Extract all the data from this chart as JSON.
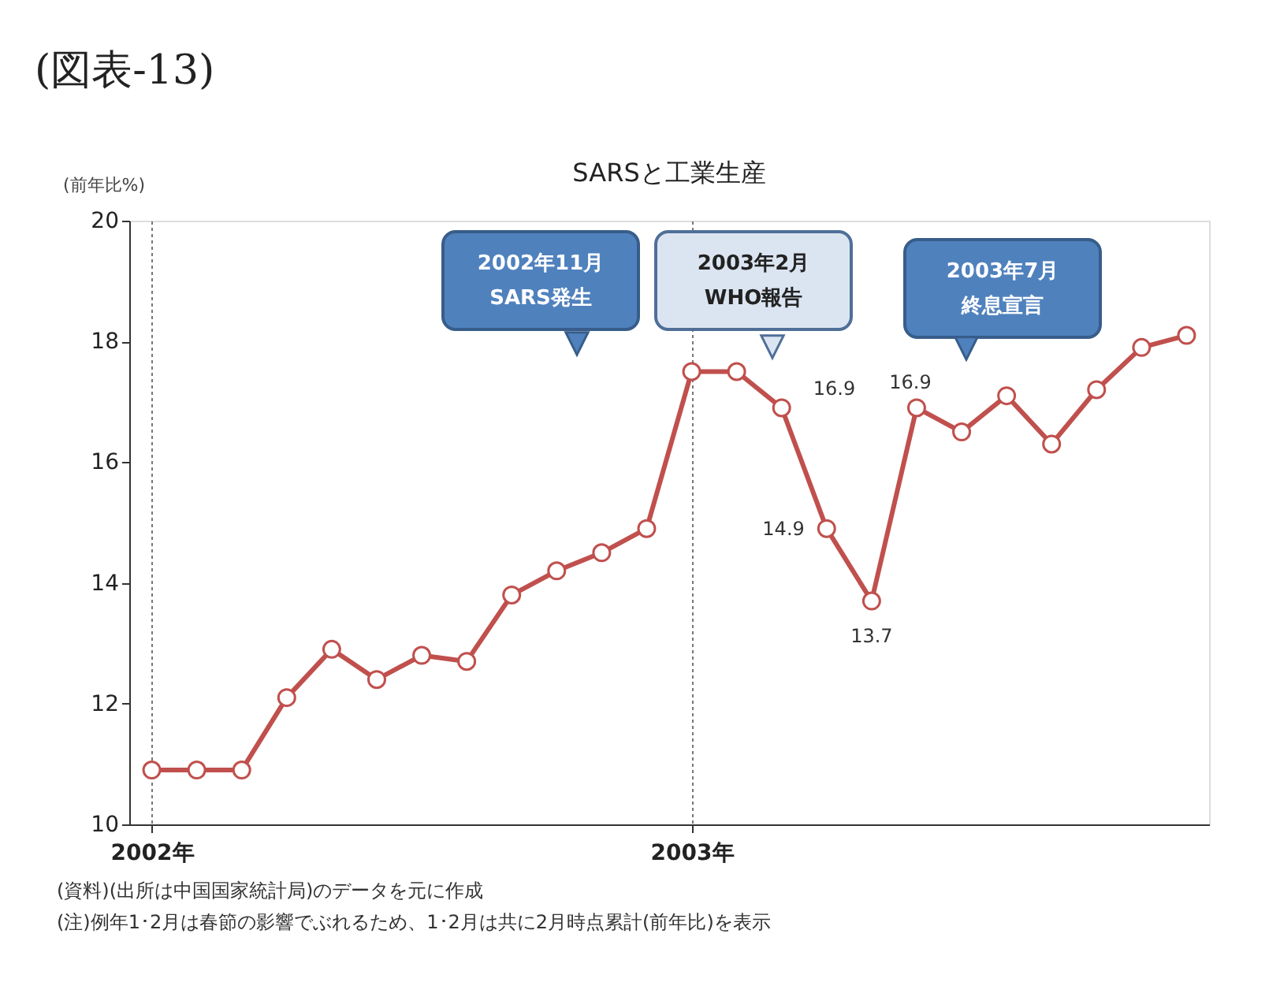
{
  "chart_data": {
    "type": "line",
    "title": "SARSと工業生産",
    "ylabel": "(前年比%)",
    "categories": [
      "2002年",
      null,
      null,
      null,
      null,
      null,
      null,
      null,
      null,
      null,
      null,
      null,
      "2003年",
      null,
      null,
      null,
      null,
      null,
      null,
      null,
      null,
      null,
      null,
      null
    ],
    "series": [
      {
        "color": "#c0504d",
        "values": [
          10.9,
          10.9,
          10.9,
          12.1,
          12.9,
          12.4,
          12.8,
          12.7,
          13.8,
          14.2,
          14.5,
          14.9,
          17.5,
          17.5,
          16.9,
          14.9,
          13.7,
          16.9,
          16.5,
          17.1,
          16.3,
          17.2,
          17.9,
          18.1
        ],
        "value_labels": [
          null,
          null,
          null,
          null,
          null,
          null,
          null,
          null,
          null,
          null,
          null,
          null,
          null,
          null,
          "16.9",
          "14.9",
          "13.7",
          "16.9",
          null,
          null,
          null,
          null,
          null,
          null
        ]
      }
    ],
    "ylim": [
      10,
      20
    ],
    "yticks": [
      10,
      12,
      14,
      16,
      18,
      20
    ],
    "marker": "circle",
    "line_style": "solid",
    "grid": "x",
    "annotations": [
      "(図表-13)",
      "2002年11月",
      "SARS発生",
      "2003年2月",
      "WHO報告",
      "2003年7月",
      "終息宣言",
      "(資料)(出所は中国国家統計局)のデータを元に作成",
      "(注)例年1･2月は春節の影響でぶれるため、1･2月は共に2月時点累計(前年比)を表示"
    ]
  }
}
